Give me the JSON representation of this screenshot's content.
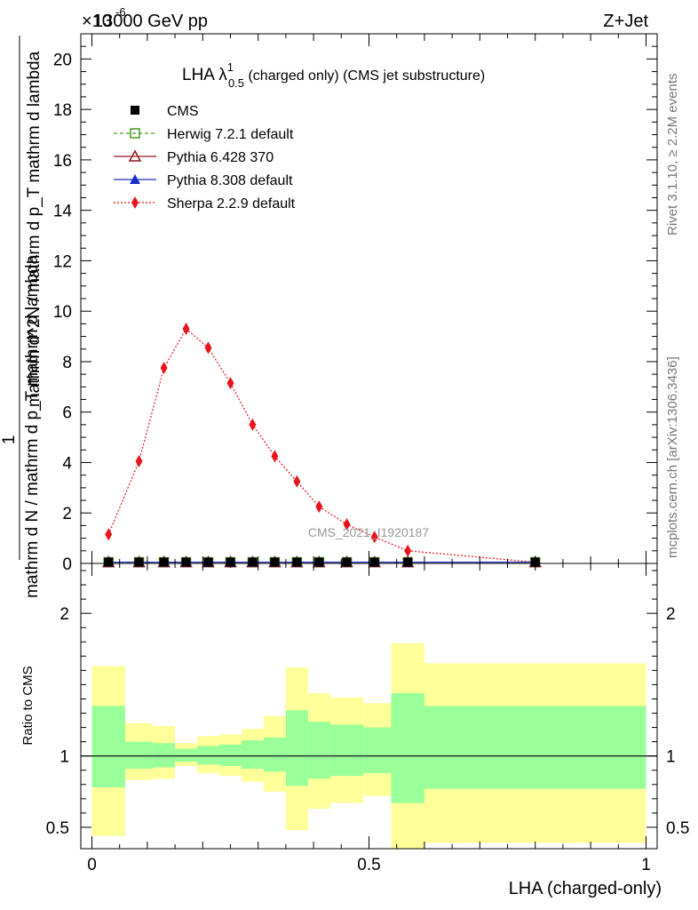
{
  "header": {
    "energy_label": "13000 GeV pp",
    "exponent_label": "×10",
    "exponent_power": "-6",
    "process_label": "Z+Jet"
  },
  "side_labels": {
    "rivet": "Rivet 3.1.10, ≥ 2.2M events",
    "mcplots": "mcplots.cern.ch [arXiv:1306.3436]"
  },
  "watermark": "CMS_2021_I1920187",
  "chart_data": [
    {
      "type": "line",
      "title": "LHA λ",
      "title_sup": "1",
      "title_sub": "0.5",
      "title_rest": " (charged only) (CMS jet substructure)",
      "ylabel_numerator": "1",
      "ylabel_denominator": "mathrm d N / mathrm d p_T mathrm d lambda",
      "ylabel_main": "mathrm d^2N / mathrm d p_T mathrm d lambda",
      "ylim": [
        0,
        21
      ],
      "xlim": [
        -0.02,
        1.02
      ],
      "y_ticks": [
        0,
        2,
        4,
        6,
        8,
        10,
        12,
        14,
        16,
        18,
        20
      ],
      "y_tick_labels": [
        "0",
        "2",
        "4",
        "6",
        "8",
        "10",
        "12",
        "14",
        "16",
        "18",
        "20"
      ],
      "legend_position": "top-left",
      "legend": [
        {
          "name": "CMS",
          "color": "#000000",
          "marker": "filled-square",
          "line": "none"
        },
        {
          "name": "Herwig 7.2.1 default",
          "color": "#4a9a1c",
          "marker": "open-square",
          "line": "dashed"
        },
        {
          "name": "Pythia 6.428 370",
          "color": "#8b1a1a",
          "marker": "open-triangle",
          "line": "solid"
        },
        {
          "name": "Pythia 8.308 default",
          "color": "#1a2fc8",
          "marker": "filled-triangle",
          "line": "solid"
        },
        {
          "name": "Sherpa 2.2.9 default",
          "color": "#e8141b",
          "marker": "filled-diamond",
          "line": "dotted"
        }
      ],
      "x": [
        0.03,
        0.085,
        0.13,
        0.17,
        0.21,
        0.25,
        0.29,
        0.33,
        0.37,
        0.41,
        0.46,
        0.51,
        0.57,
        0.8
      ],
      "series": [
        {
          "name": "CMS",
          "values": [
            0.05,
            0.05,
            0.05,
            0.05,
            0.05,
            0.05,
            0.05,
            0.05,
            0.05,
            0.05,
            0.05,
            0.05,
            0.05,
            0.05
          ]
        },
        {
          "name": "Herwig 7.2.1 default",
          "values": [
            0.05,
            0.05,
            0.05,
            0.05,
            0.05,
            0.05,
            0.05,
            0.05,
            0.05,
            0.05,
            0.05,
            0.05,
            0.05,
            0.05
          ]
        },
        {
          "name": "Pythia 6.428 370",
          "values": [
            0.05,
            0.05,
            0.05,
            0.05,
            0.05,
            0.05,
            0.05,
            0.05,
            0.05,
            0.05,
            0.05,
            0.05,
            0.05,
            0.05
          ]
        },
        {
          "name": "Pythia 8.308 default",
          "values": [
            0.05,
            0.05,
            0.05,
            0.05,
            0.05,
            0.05,
            0.05,
            0.05,
            0.05,
            0.05,
            0.05,
            0.05,
            0.05,
            0.05
          ]
        },
        {
          "name": "Sherpa 2.2.9 default",
          "values": [
            1.15,
            4.05,
            7.75,
            9.3,
            8.55,
            7.15,
            5.5,
            4.25,
            3.25,
            2.25,
            1.55,
            1.05,
            0.5,
            0.05
          ]
        }
      ]
    },
    {
      "type": "area",
      "ylabel": "Ratio to CMS",
      "xlabel": "LHA (charged-only)",
      "ylim": [
        0.35,
        2.35
      ],
      "xlim": [
        -0.02,
        1.02
      ],
      "y_ticks": [
        0.5,
        1,
        2
      ],
      "y_tick_labels": [
        "0.5",
        "1",
        "2"
      ],
      "x_ticks": [
        0,
        0.5,
        1
      ],
      "x_tick_labels": [
        "0",
        "0.5",
        "1"
      ],
      "band_colors": {
        "inner": "#99ff99",
        "outer": "#ffff99"
      },
      "bins": [
        {
          "x0": 0.0,
          "x1": 0.06,
          "inner": [
            0.78,
            1.35
          ],
          "outer": [
            0.44,
            1.63
          ]
        },
        {
          "x0": 0.06,
          "x1": 0.11,
          "inner": [
            0.91,
            1.1
          ],
          "outer": [
            0.83,
            1.23
          ]
        },
        {
          "x0": 0.11,
          "x1": 0.15,
          "inner": [
            0.92,
            1.09
          ],
          "outer": [
            0.84,
            1.21
          ]
        },
        {
          "x0": 0.15,
          "x1": 0.19,
          "inner": [
            0.96,
            1.05
          ],
          "outer": [
            0.93,
            1.09
          ]
        },
        {
          "x0": 0.19,
          "x1": 0.23,
          "inner": [
            0.94,
            1.07
          ],
          "outer": [
            0.88,
            1.14
          ]
        },
        {
          "x0": 0.23,
          "x1": 0.27,
          "inner": [
            0.93,
            1.08
          ],
          "outer": [
            0.86,
            1.15
          ]
        },
        {
          "x0": 0.27,
          "x1": 0.31,
          "inner": [
            0.91,
            1.11
          ],
          "outer": [
            0.82,
            1.19
          ]
        },
        {
          "x0": 0.31,
          "x1": 0.35,
          "inner": [
            0.89,
            1.13
          ],
          "outer": [
            0.75,
            1.28
          ]
        },
        {
          "x0": 0.35,
          "x1": 0.39,
          "inner": [
            0.79,
            1.32
          ],
          "outer": [
            0.48,
            1.62
          ]
        },
        {
          "x0": 0.39,
          "x1": 0.43,
          "inner": [
            0.84,
            1.24
          ],
          "outer": [
            0.63,
            1.44
          ]
        },
        {
          "x0": 0.43,
          "x1": 0.49,
          "inner": [
            0.86,
            1.22
          ],
          "outer": [
            0.67,
            1.41
          ]
        },
        {
          "x0": 0.49,
          "x1": 0.54,
          "inner": [
            0.88,
            1.2
          ],
          "outer": [
            0.72,
            1.37
          ]
        },
        {
          "x0": 0.54,
          "x1": 0.6,
          "inner": [
            0.67,
            1.44
          ],
          "outer": [
            0.35,
            1.79
          ]
        },
        {
          "x0": 0.6,
          "x1": 1.0,
          "inner": [
            0.77,
            1.35
          ],
          "outer": [
            0.39,
            1.65
          ]
        }
      ],
      "reference_line": 1
    }
  ]
}
